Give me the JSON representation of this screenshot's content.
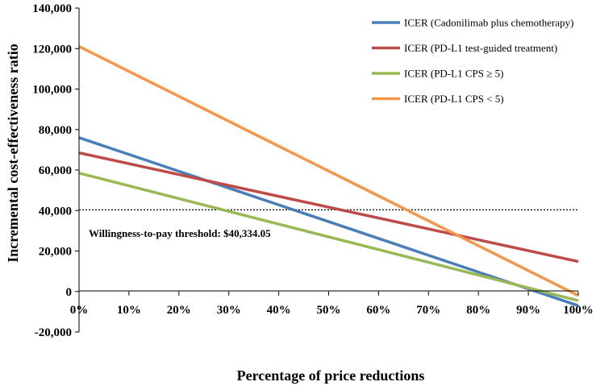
{
  "chart_data": {
    "type": "line",
    "title": "",
    "xlabel": "Percentage of price reductions",
    "ylabel": "Incremental  cost-effectiveness ratio",
    "x": [
      0,
      100
    ],
    "x_tick_values": [
      0,
      10,
      20,
      30,
      40,
      50,
      60,
      70,
      80,
      90,
      100
    ],
    "x_tick_labels": [
      "0%",
      "10%",
      "20%",
      "30%",
      "40%",
      "50%",
      "60%",
      "70%",
      "80%",
      "90%",
      "100%"
    ],
    "ylim": [
      -20000,
      140000
    ],
    "y_tick_values": [
      -20000,
      0,
      20000,
      40000,
      60000,
      80000,
      100000,
      120000,
      140000
    ],
    "y_tick_labels": [
      "-20,000",
      "0",
      "20,000",
      "40,000",
      "60,000",
      "80,000",
      "100,000",
      "120,000",
      "140,000"
    ],
    "grid": false,
    "legend_position": "top-right",
    "series": [
      {
        "name": "ICER (Cadonilimab plus chemotherapy)",
        "color": "#4a7ebb",
        "values": [
          76000,
          -7000
        ]
      },
      {
        "name": "ICER (PD-L1 test-guided treatment)",
        "color": "#be4b48",
        "values": [
          68500,
          14800
        ]
      },
      {
        "name": "ICER (PD-L1  CPS ≥ 5)",
        "color": "#98b954",
        "values": [
          58500,
          -4500
        ]
      },
      {
        "name": "ICER (PD-L1  CPS < 5)",
        "color": "#f79646",
        "values": [
          121000,
          -2000
        ]
      }
    ],
    "threshold": {
      "value": 40334.05,
      "label": "Willingness-to-pay threshold: $40,334.05"
    }
  }
}
